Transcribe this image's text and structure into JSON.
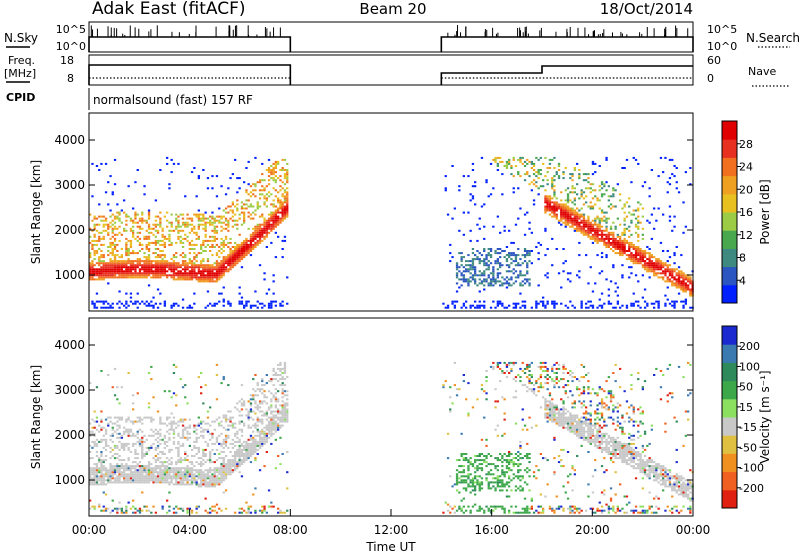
{
  "header": {
    "station": "Adak East (fitACF)",
    "beam": "Beam 20",
    "date": "18/Oct/2014"
  },
  "panels": {
    "nsky_label": "N.Sky",
    "nsky_ticks": [
      "10^5",
      "10^0"
    ],
    "nsearch_label": "N.Search",
    "nsearch_ticks": [
      "10^5",
      "10^0"
    ],
    "freq_label": "Freq.",
    "freq_unit": "[MHz]",
    "freq_ticks": [
      "18",
      "8"
    ],
    "nave_label": "Nave",
    "nave_ticks": [
      "60",
      "0"
    ],
    "cpid_label": "CPID",
    "cpid_text": "normalsound (fast) 157 RF"
  },
  "chart_data": [
    {
      "type": "heatmap",
      "name": "power",
      "ylabel": "Slant Range [km]",
      "yticks": [
        1000,
        2000,
        3000,
        4000
      ],
      "ylim": [
        200,
        4600
      ],
      "colorbar_label": "Power [dB]",
      "colorbar_ticks": [
        4,
        8,
        12,
        16,
        20,
        24,
        28
      ],
      "colors": [
        "#0020ff",
        "#2b55c0",
        "#3f8a80",
        "#49a84e",
        "#9ccc46",
        "#e8c020",
        "#f0a020",
        "#f07020",
        "#e83020",
        "#e00000"
      ]
    },
    {
      "type": "heatmap",
      "name": "velocity",
      "ylabel": "Slant Range [km]",
      "yticks": [
        1000,
        2000,
        3000,
        4000
      ],
      "ylim": [
        200,
        4600
      ],
      "colorbar_label": "Velocity [m s⁻¹]",
      "colorbar_ticks": [
        "200",
        "100",
        "50",
        "15",
        "-15",
        "-50",
        "-100",
        "-200"
      ],
      "colors": [
        "#1a2ad0",
        "#3a7ab0",
        "#2e8a5a",
        "#3ca84a",
        "#8ce060",
        "#c8c8c8",
        "#e0c040",
        "#f09020",
        "#f06020",
        "#e02010"
      ]
    }
  ],
  "time_axis": {
    "label": "Time UT",
    "ticks": [
      "00:00",
      "04:00",
      "08:00",
      "12:00",
      "16:00",
      "20:00",
      "00:00"
    ]
  }
}
